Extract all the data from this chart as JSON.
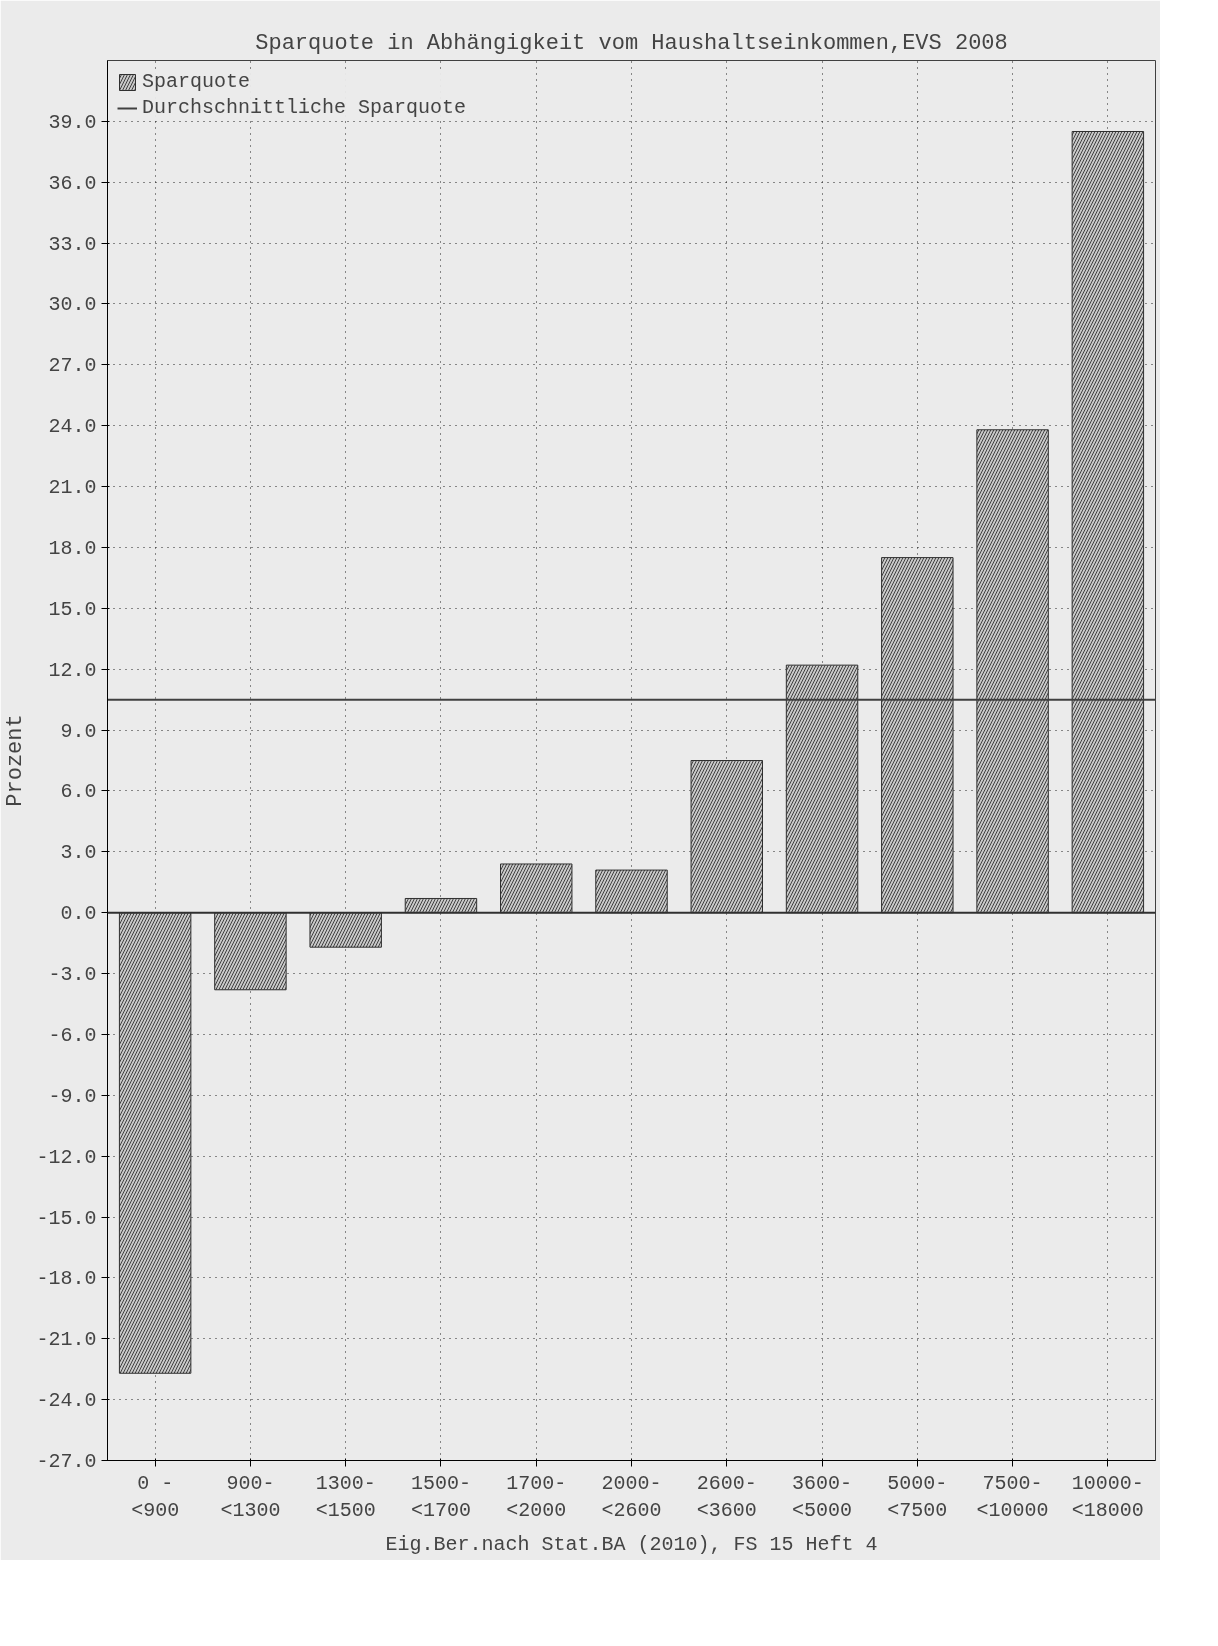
{
  "chart_data": {
    "type": "bar",
    "title": "Sparquote in Abhängigkeit vom Haushaltseinkommen,EVS 2008",
    "ylabel": "Prozent",
    "categories": [
      "0 -\n<900",
      "900-\n<1300",
      "1300-\n<1500",
      "1500-\n<1700",
      "1700-\n<2000",
      "2000-\n<2600",
      "2600-\n<3600",
      "3600-\n<5000",
      "5000-\n<7500",
      "7500-\n<10000",
      "10000-\n<18000"
    ],
    "series": [
      {
        "name": "Sparquote",
        "color": "#c8c8c8",
        "values": [
          -22.7,
          -3.8,
          -1.7,
          0.7,
          2.4,
          2.1,
          7.5,
          12.2,
          17.5,
          23.8,
          38.5
        ]
      }
    ],
    "ref_lines": [
      {
        "axis": "y",
        "value": 10.5,
        "label": "Durchschnittliche Sparquote",
        "color": "#404040"
      }
    ],
    "ylim": [
      -27,
      42
    ],
    "yticks": [
      {
        "value": -27,
        "label": "-27.0"
      },
      {
        "value": -24,
        "label": "-24.0"
      },
      {
        "value": -21,
        "label": "-21.0"
      },
      {
        "value": -18,
        "label": "-18.0"
      },
      {
        "value": -15,
        "label": "-15.0"
      },
      {
        "value": -12,
        "label": "-12.0"
      },
      {
        "value": -9,
        "label": "-9.0"
      },
      {
        "value": -6,
        "label": "-6.0"
      },
      {
        "value": -3,
        "label": "-3.0"
      },
      {
        "value": 0,
        "label": "0.0"
      },
      {
        "value": 3,
        "label": "3.0"
      },
      {
        "value": 6,
        "label": "6.0"
      },
      {
        "value": 9,
        "label": "9.0"
      },
      {
        "value": 12,
        "label": "12.0"
      },
      {
        "value": 15,
        "label": "15.0"
      },
      {
        "value": 18,
        "label": "18.0"
      },
      {
        "value": 21,
        "label": "21.0"
      },
      {
        "value": 24,
        "label": "24.0"
      },
      {
        "value": 27,
        "label": "27.0"
      },
      {
        "value": 30,
        "label": "30.0"
      },
      {
        "value": 33,
        "label": "33.0"
      },
      {
        "value": 36,
        "label": "36.0"
      },
      {
        "value": 39,
        "label": "39.0"
      }
    ],
    "grid": true,
    "legend": "top left",
    "annotations": [
      "Eig.Ber.nach Stat.BA (2010), FS 15 Heft 4"
    ]
  }
}
